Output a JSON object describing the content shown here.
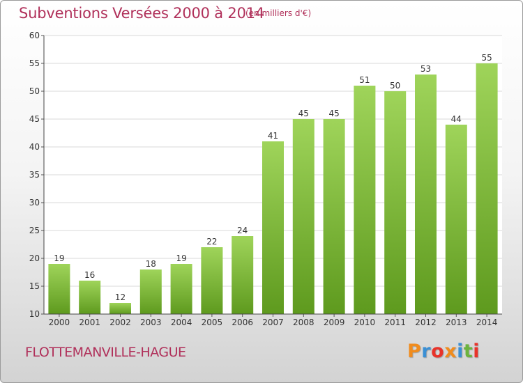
{
  "header": {
    "title": "Subventions Versées 2000 à 2014",
    "unit": "(en milliers d'€)"
  },
  "footer": {
    "location": "FLOTTEMANVILLE-HAGUE",
    "logo": "Proxiti",
    "logo_colors": [
      "#f08c1e",
      "#3a8fd4",
      "#e8332a",
      "#f08c1e",
      "#3a8fd4",
      "#6cb33e",
      "#e8332a"
    ]
  },
  "chart_data": {
    "type": "bar",
    "categories": [
      "2000",
      "2001",
      "2002",
      "2003",
      "2004",
      "2005",
      "2006",
      "2007",
      "2008",
      "2009",
      "2010",
      "2011",
      "2012",
      "2013",
      "2014"
    ],
    "values": [
      19,
      16,
      12,
      18,
      19,
      22,
      24,
      41,
      45,
      45,
      51,
      50,
      53,
      44,
      55
    ],
    "title": "Subventions Versées 2000 à 2014",
    "subtitle": "(en milliers d'€)",
    "xlabel": "",
    "ylabel": "",
    "ylim": [
      10,
      60
    ],
    "yticks": [
      10,
      15,
      20,
      25,
      30,
      35,
      40,
      45,
      50,
      55,
      60
    ],
    "grid": true,
    "bar_color_top": "#9fd45a",
    "bar_color_bottom": "#5e9a1e",
    "grid_color": "#d8d8d8"
  }
}
